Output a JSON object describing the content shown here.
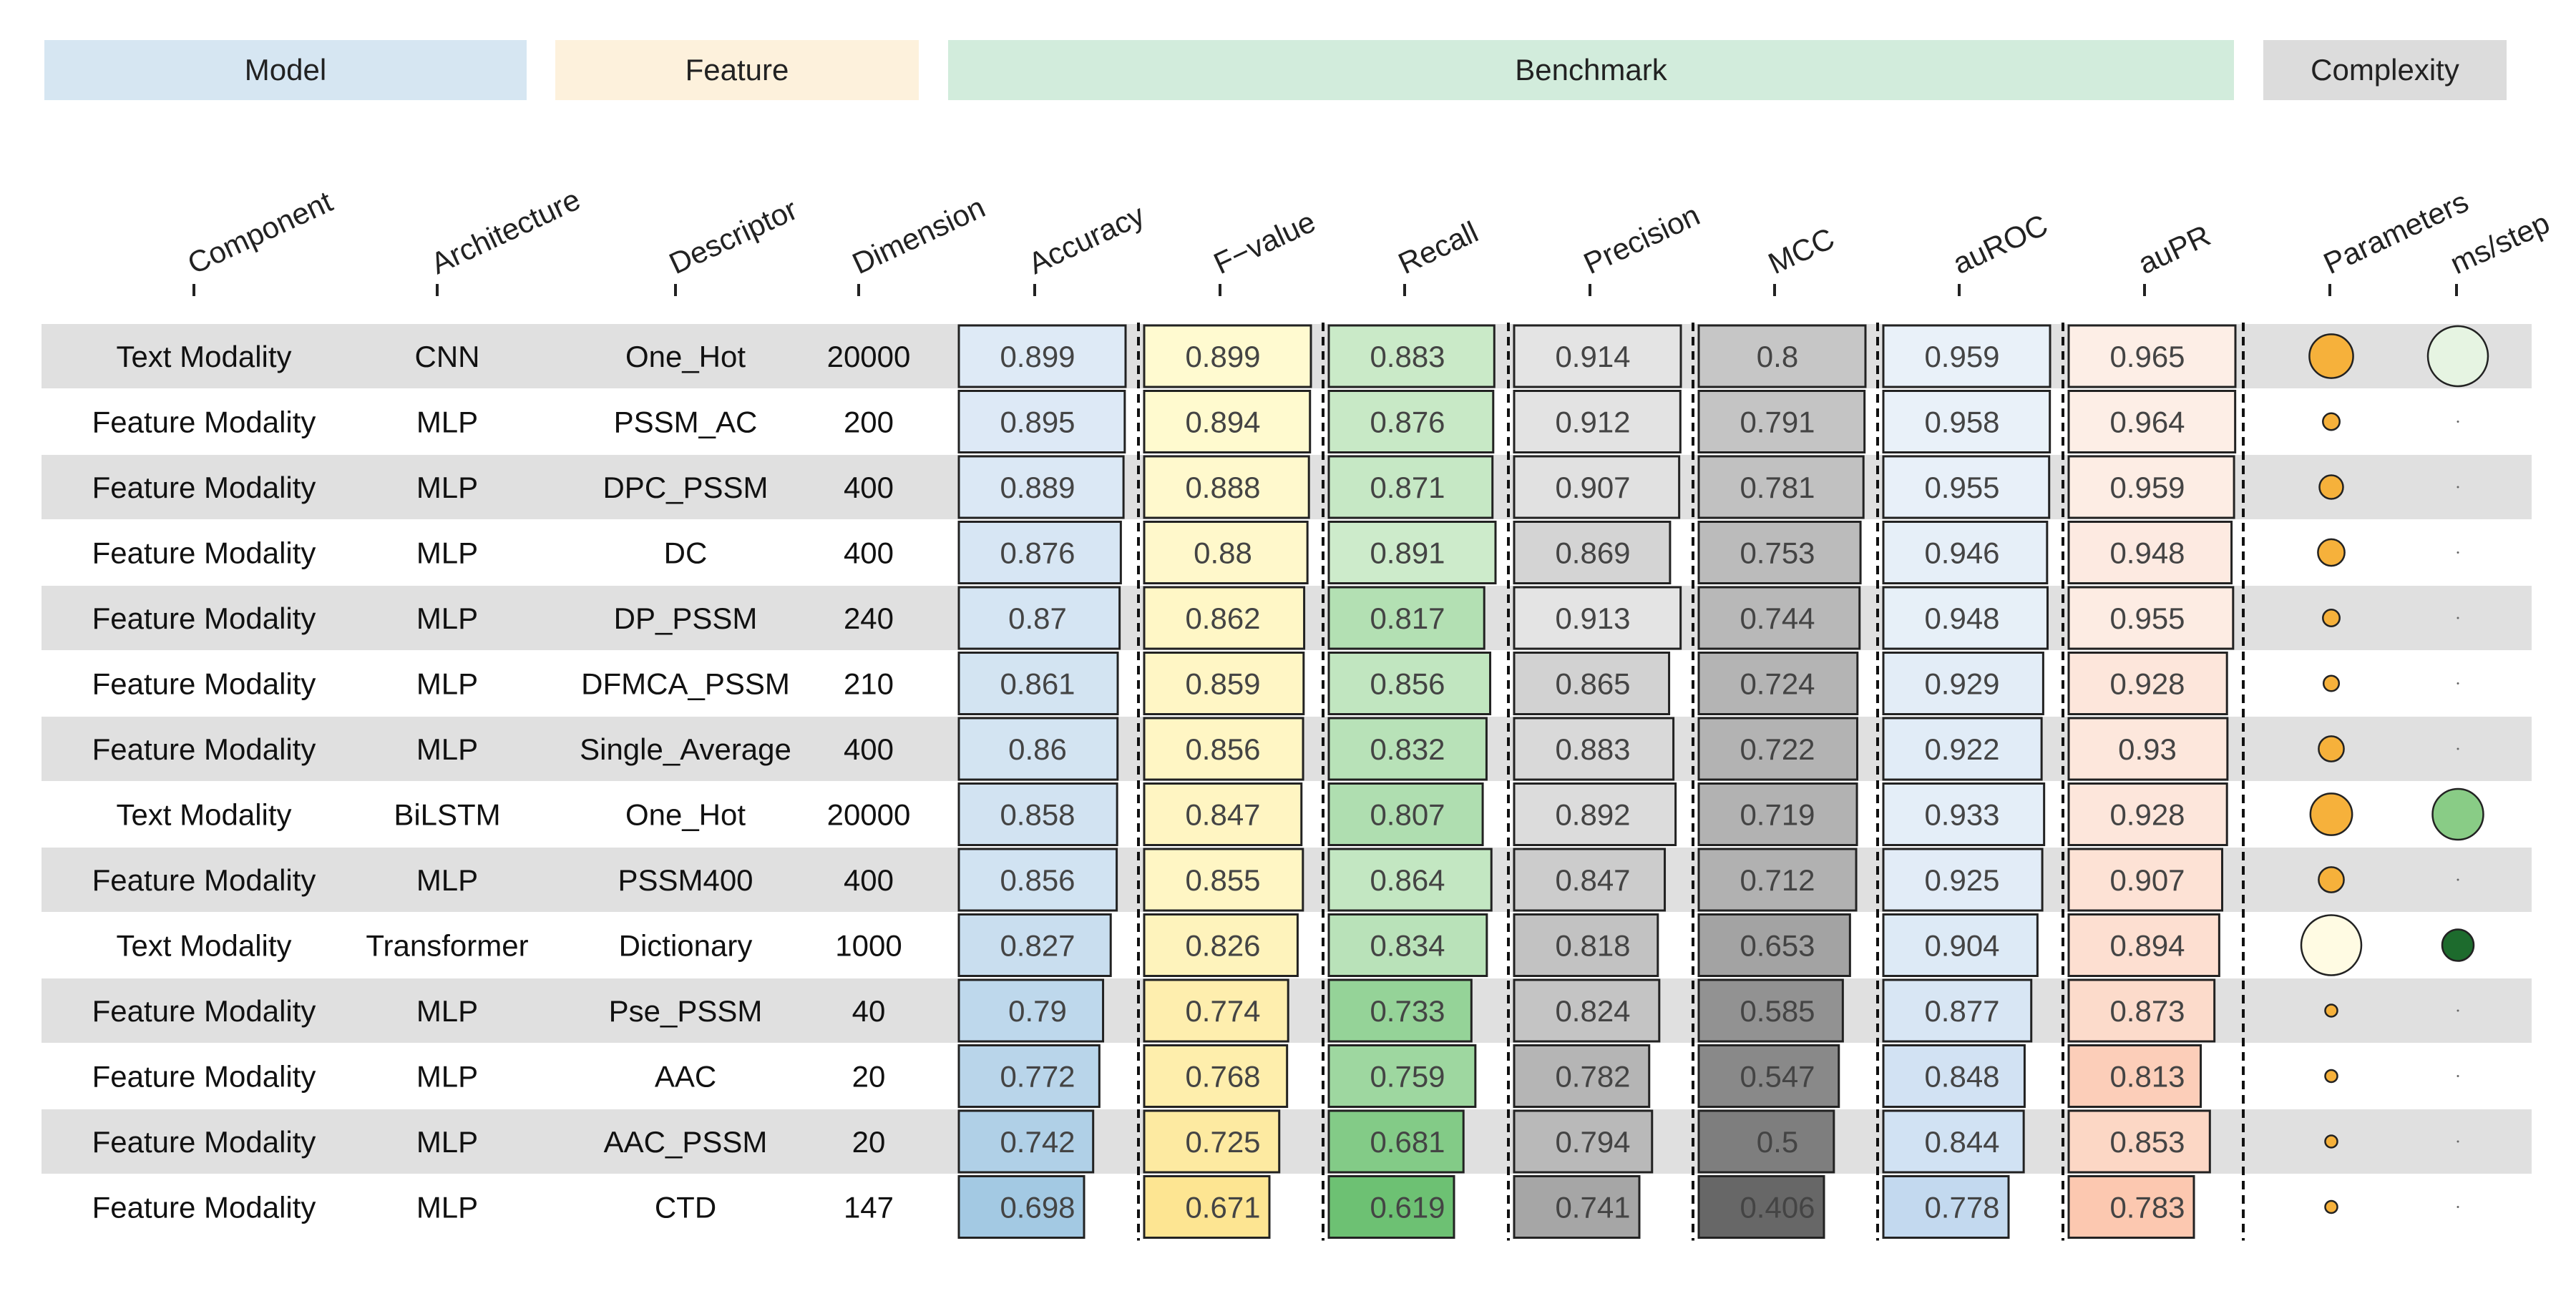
{
  "groups": [
    {
      "label": "Model",
      "color": "#d6e6f2"
    },
    {
      "label": "Feature",
      "color": "#fdf1dc"
    },
    {
      "label": "Benchmark",
      "color": "#d2ecdc"
    },
    {
      "label": "Complexity",
      "color": "#dcdcdc"
    }
  ],
  "columns": {
    "text": [
      "Component",
      "Architecture",
      "Descriptor",
      "Dimension"
    ],
    "metrics": [
      "Accuracy",
      "F−value",
      "Recall",
      "Precision",
      "MCC",
      "auROC",
      "auPR"
    ],
    "complexity": [
      "Parameters",
      "ms/step"
    ]
  },
  "colors": {
    "row_band": "#e0e0e0",
    "metric_light": [
      "#deeaf6",
      "#fffad0",
      "#cdebcb",
      "#e4e4e4",
      "#c6c6c6",
      "#e9f1f9",
      "#fdeee6"
    ],
    "metric_dark": [
      "#a3c9e3",
      "#fde592",
      "#6dc173",
      "#a6a6a6",
      "#676767",
      "#c3d9ef",
      "#fcc8b0"
    ],
    "parameters_fill": "#f6b13b",
    "parameters_large_fill": "#fffbe3",
    "ms_step_large_fill": "#e6f4e2",
    "ms_step_mid_fill": "#89cc86",
    "ms_step_small_fill": "#1d6b2d"
  },
  "chart_data": {
    "type": "table",
    "rows": [
      {
        "component": "Text Modality",
        "architecture": "CNN",
        "descriptor": "One_Hot",
        "dimension": "20000",
        "metrics": [
          0.899,
          0.899,
          0.883,
          0.914,
          0.8,
          0.959,
          0.965
        ],
        "labels": [
          "0.899",
          "0.899",
          "0.883",
          "0.914",
          "0.8",
          "0.959",
          "0.965"
        ],
        "parameters": 0.5,
        "ms_step": 1.0
      },
      {
        "component": "Feature Modality",
        "architecture": "MLP",
        "descriptor": "PSSM_AC",
        "dimension": "200",
        "metrics": [
          0.895,
          0.894,
          0.876,
          0.912,
          0.791,
          0.958,
          0.964
        ],
        "labels": [
          "0.895",
          "0.894",
          "0.876",
          "0.912",
          "0.791",
          "0.958",
          "0.964"
        ],
        "parameters": 0.05,
        "ms_step": 0.02
      },
      {
        "component": "Feature Modality",
        "architecture": "MLP",
        "descriptor": "DPC_PSSM",
        "dimension": "400",
        "metrics": [
          0.889,
          0.888,
          0.871,
          0.907,
          0.781,
          0.955,
          0.959
        ],
        "labels": [
          "0.889",
          "0.888",
          "0.871",
          "0.907",
          "0.781",
          "0.955",
          "0.959"
        ],
        "parameters": 0.12,
        "ms_step": 0.02
      },
      {
        "component": "Feature Modality",
        "architecture": "MLP",
        "descriptor": "DC",
        "dimension": "400",
        "metrics": [
          0.876,
          0.88,
          0.891,
          0.869,
          0.753,
          0.946,
          0.948
        ],
        "labels": [
          "0.876",
          "0.88",
          "0.891",
          "0.869",
          "0.753",
          "0.946",
          "0.948"
        ],
        "parameters": 0.16,
        "ms_step": 0.02
      },
      {
        "component": "Feature Modality",
        "architecture": "MLP",
        "descriptor": "DP_PSSM",
        "dimension": "240",
        "metrics": [
          0.87,
          0.862,
          0.817,
          0.913,
          0.744,
          0.948,
          0.955
        ],
        "labels": [
          "0.87",
          "0.862",
          "0.817",
          "0.913",
          "0.744",
          "0.948",
          "0.955"
        ],
        "parameters": 0.05,
        "ms_step": 0.02
      },
      {
        "component": "Feature Modality",
        "architecture": "MLP",
        "descriptor": "DFMCA_PSSM",
        "dimension": "210",
        "metrics": [
          0.861,
          0.859,
          0.856,
          0.865,
          0.724,
          0.929,
          0.928
        ],
        "labels": [
          "0.861",
          "0.859",
          "0.856",
          "0.865",
          "0.724",
          "0.929",
          "0.928"
        ],
        "parameters": 0.04,
        "ms_step": 0.02
      },
      {
        "component": "Feature Modality",
        "architecture": "MLP",
        "descriptor": "Single_Average",
        "dimension": "400",
        "metrics": [
          0.86,
          0.856,
          0.832,
          0.883,
          0.722,
          0.922,
          0.93
        ],
        "labels": [
          "0.86",
          "0.856",
          "0.832",
          "0.883",
          "0.722",
          "0.922",
          "0.93"
        ],
        "parameters": 0.14,
        "ms_step": 0.02
      },
      {
        "component": "Text Modality",
        "architecture": "BiLSTM",
        "descriptor": "One_Hot",
        "dimension": "20000",
        "metrics": [
          0.858,
          0.847,
          0.807,
          0.892,
          0.719,
          0.933,
          0.928
        ],
        "labels": [
          "0.858",
          "0.847",
          "0.807",
          "0.892",
          "0.719",
          "0.933",
          "0.928"
        ],
        "parameters": 0.45,
        "ms_step": 0.7
      },
      {
        "component": "Feature Modality",
        "architecture": "MLP",
        "descriptor": "PSSM400",
        "dimension": "400",
        "metrics": [
          0.856,
          0.855,
          0.864,
          0.847,
          0.712,
          0.925,
          0.907
        ],
        "labels": [
          "0.856",
          "0.855",
          "0.864",
          "0.847",
          "0.712",
          "0.925",
          "0.907"
        ],
        "parameters": 0.14,
        "ms_step": 0.02
      },
      {
        "component": "Text Modality",
        "architecture": "Transformer",
        "descriptor": "Dictionary",
        "dimension": "1000",
        "metrics": [
          0.827,
          0.826,
          0.834,
          0.818,
          0.653,
          0.904,
          0.894
        ],
        "labels": [
          "0.827",
          "0.826",
          "0.834",
          "0.818",
          "0.653",
          "0.904",
          "0.894"
        ],
        "parameters": 1.0,
        "ms_step": 0.25
      },
      {
        "component": "Feature Modality",
        "architecture": "MLP",
        "descriptor": "Pse_PSSM",
        "dimension": "40",
        "metrics": [
          0.79,
          0.774,
          0.733,
          0.824,
          0.585,
          0.877,
          0.873
        ],
        "labels": [
          "0.79",
          "0.774",
          "0.733",
          "0.824",
          "0.585",
          "0.877",
          "0.873"
        ],
        "parameters": 0.02,
        "ms_step": 0.02
      },
      {
        "component": "Feature Modality",
        "architecture": "MLP",
        "descriptor": "AAC",
        "dimension": "20",
        "metrics": [
          0.772,
          0.768,
          0.759,
          0.782,
          0.547,
          0.848,
          0.813
        ],
        "labels": [
          "0.772",
          "0.768",
          "0.759",
          "0.782",
          "0.547",
          "0.848",
          "0.813"
        ],
        "parameters": 0.02,
        "ms_step": 0.02
      },
      {
        "component": "Feature Modality",
        "architecture": "MLP",
        "descriptor": "AAC_PSSM",
        "dimension": "20",
        "metrics": [
          0.742,
          0.725,
          0.681,
          0.794,
          0.5,
          0.844,
          0.853
        ],
        "labels": [
          "0.742",
          "0.725",
          "0.681",
          "0.794",
          "0.5",
          "0.844",
          "0.853"
        ],
        "parameters": 0.02,
        "ms_step": 0.02
      },
      {
        "component": "Feature Modality",
        "architecture": "MLP",
        "descriptor": "CTD",
        "dimension": "147",
        "metrics": [
          0.698,
          0.671,
          0.619,
          0.741,
          0.406,
          0.778,
          0.783
        ],
        "labels": [
          "0.698",
          "0.671",
          "0.619",
          "0.741",
          "0.406",
          "0.778",
          "0.783"
        ],
        "parameters": 0.02,
        "ms_step": 0.02
      }
    ]
  }
}
